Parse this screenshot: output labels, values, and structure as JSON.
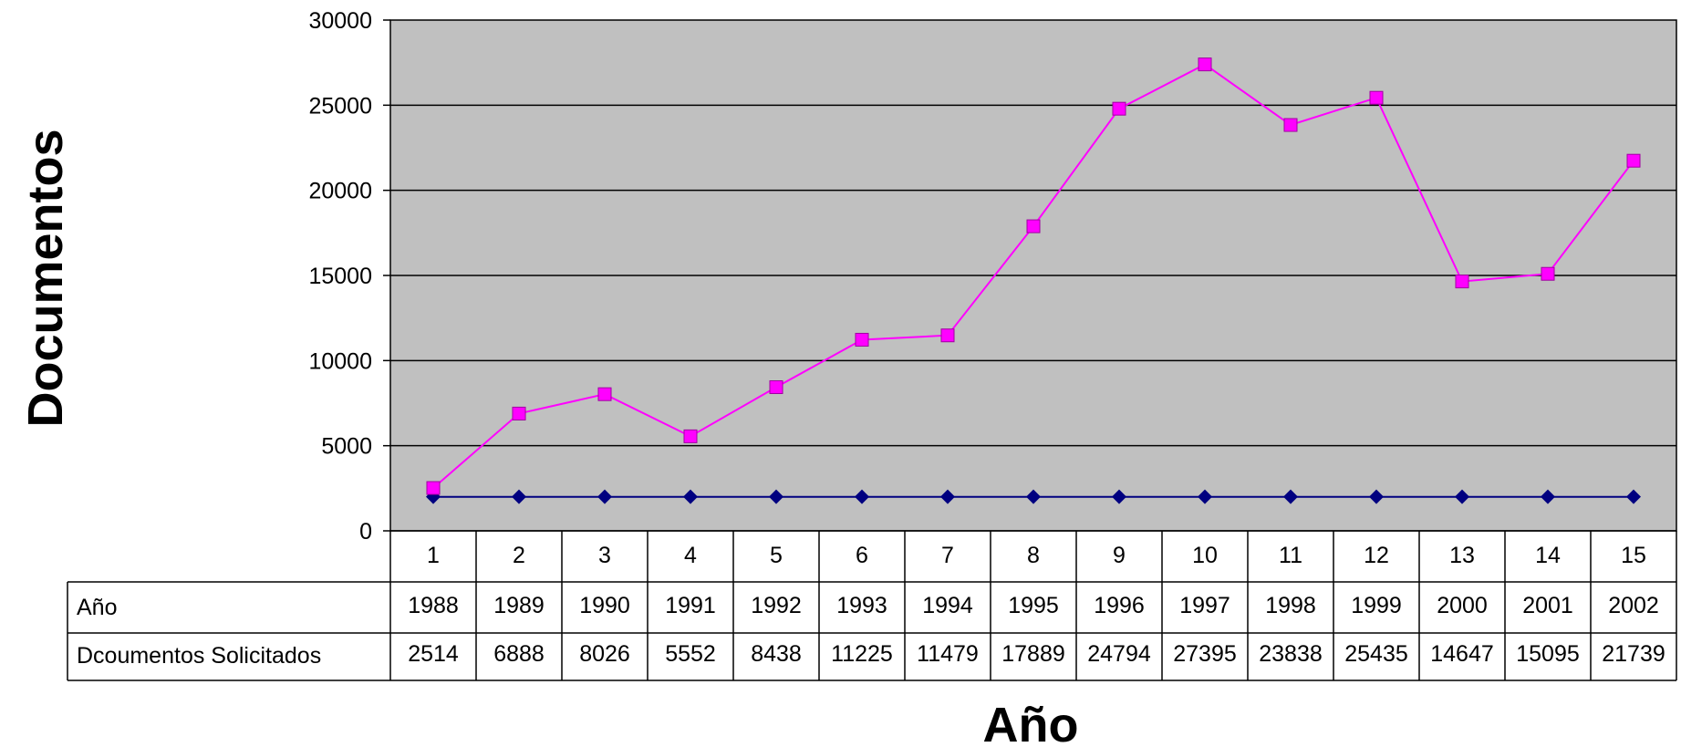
{
  "chart_data": {
    "type": "line",
    "ylabel": "Documentos",
    "xlabel": "Año",
    "ylim": [
      0,
      30000
    ],
    "y_ticks": [
      "0",
      "5000",
      "10000",
      "15000",
      "20000",
      "25000",
      "30000"
    ],
    "categories": [
      "1",
      "2",
      "3",
      "4",
      "5",
      "6",
      "7",
      "8",
      "9",
      "10",
      "11",
      "12",
      "13",
      "14",
      "15"
    ],
    "series": [
      {
        "name": "Año",
        "values": [
          1988,
          1989,
          1990,
          1991,
          1992,
          1993,
          1994,
          1995,
          1996,
          1997,
          1998,
          1999,
          2000,
          2001,
          2002
        ],
        "plotted_values": [
          2000,
          2000,
          2000,
          2000,
          2000,
          2000,
          2000,
          2000,
          2000,
          2000,
          2000,
          2000,
          2000,
          2000,
          2000
        ],
        "color": "#000080",
        "marker": "diamond"
      },
      {
        "name": "Dcoumentos Solicitados",
        "values": [
          2514,
          6888,
          8026,
          5552,
          8438,
          11225,
          11479,
          17889,
          24794,
          27395,
          23838,
          25435,
          14647,
          15095,
          21739
        ],
        "color": "#FF00FF",
        "marker": "square"
      }
    ],
    "grid": true,
    "plot_background": "#C0C0C0",
    "legend": "data table below the chart"
  }
}
